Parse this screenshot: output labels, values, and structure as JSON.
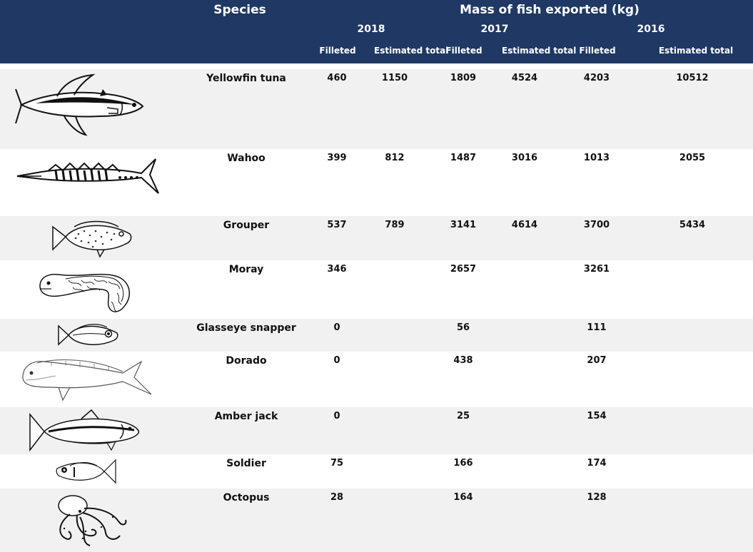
{
  "header": {
    "species_label": "Species",
    "mass_label": "Mass of fish exported (kg)",
    "years": [
      "2018",
      "2017",
      "2016"
    ],
    "sub": {
      "filleted": "Filleted",
      "estimated_total": "Estimated total"
    }
  },
  "rows": [
    {
      "species": "Yellowfin tuna",
      "icon": "yellowfin-tuna-icon",
      "f2018": "460",
      "e2018": "1150",
      "f2017": "1809",
      "e2017": "4524",
      "f2016": "4203",
      "e2016": "10512"
    },
    {
      "species": "Wahoo",
      "icon": "wahoo-icon",
      "f2018": "399",
      "e2018": "812",
      "f2017": "1487",
      "e2017": "3016",
      "f2016": "1013",
      "e2016": "2055"
    },
    {
      "species": "Grouper",
      "icon": "grouper-icon",
      "f2018": "537",
      "e2018": "789",
      "f2017": "3141",
      "e2017": "4614",
      "f2016": "3700",
      "e2016": "5434"
    },
    {
      "species": "Moray",
      "icon": "moray-icon",
      "f2018": "346",
      "e2018": "",
      "f2017": "2657",
      "e2017": "",
      "f2016": "3261",
      "e2016": ""
    },
    {
      "species": "Glasseye snapper",
      "icon": "glasseye-snapper-icon",
      "f2018": "0",
      "e2018": "",
      "f2017": "56",
      "e2017": "",
      "f2016": "111",
      "e2016": ""
    },
    {
      "species": "Dorado",
      "icon": "dorado-icon",
      "f2018": "0",
      "e2018": "",
      "f2017": "438",
      "e2017": "",
      "f2016": "207",
      "e2016": ""
    },
    {
      "species": "Amber jack",
      "icon": "amber-jack-icon",
      "f2018": "0",
      "e2018": "",
      "f2017": "25",
      "e2017": "",
      "f2016": "154",
      "e2016": ""
    },
    {
      "species": "Soldier",
      "icon": "soldier-icon",
      "f2018": "75",
      "e2018": "",
      "f2017": "166",
      "e2017": "",
      "f2016": "174",
      "e2016": ""
    },
    {
      "species": "Octopus",
      "icon": "octopus-icon",
      "f2018": "28",
      "e2018": "",
      "f2017": "164",
      "e2017": "",
      "f2016": "128",
      "e2016": ""
    }
  ]
}
